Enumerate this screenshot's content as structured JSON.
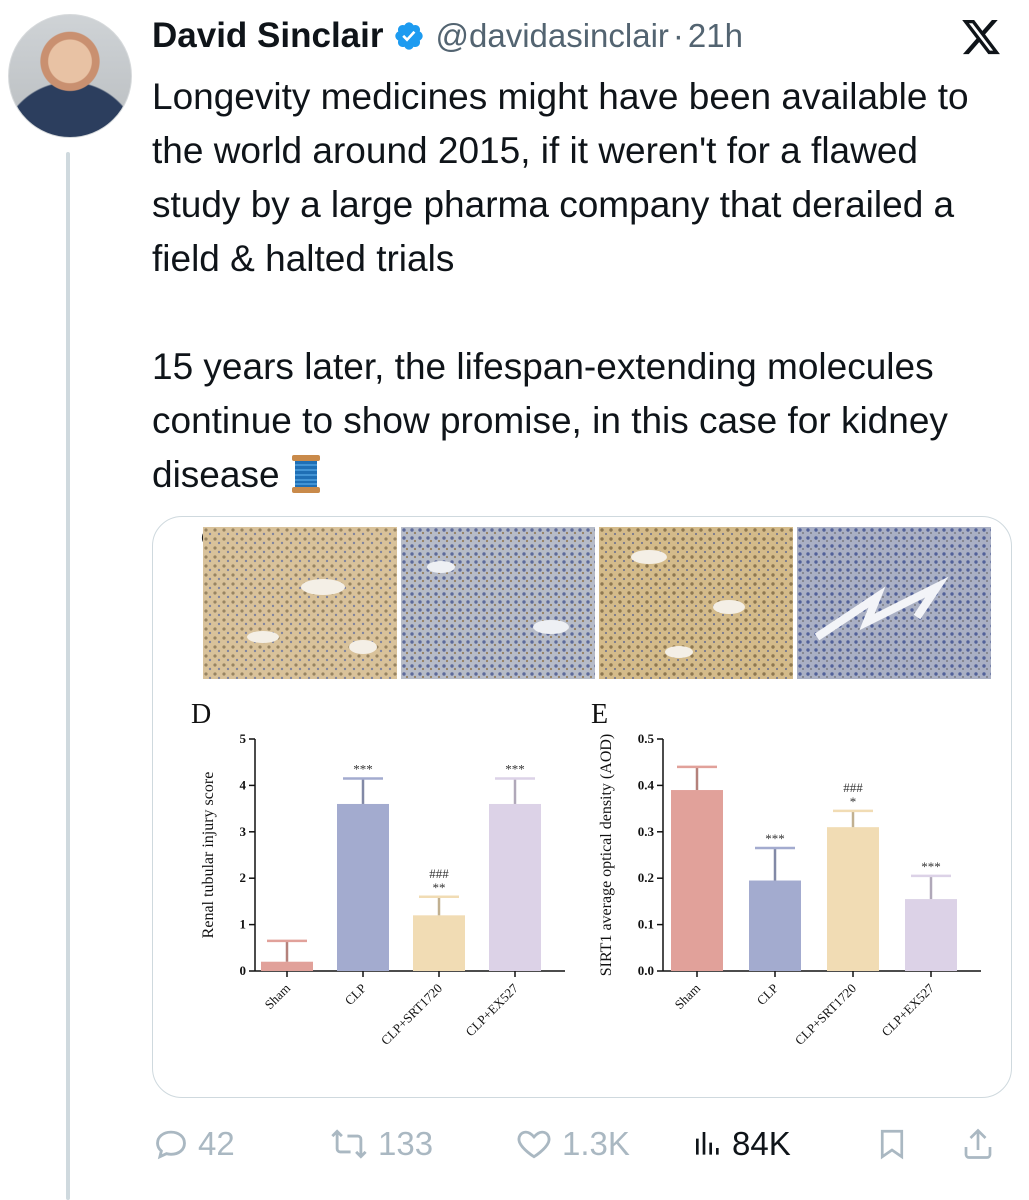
{
  "author": {
    "name": "David Sinclair",
    "handle": "@davidasinclair",
    "separator": "·",
    "time": "21h"
  },
  "tweet": {
    "paragraph1": "Longevity medicines might have been available to the world around 2015, if it weren't for a flawed study by a large pharma company that derailed a field & halted trials",
    "paragraph2": "15 years later, the lifespan-extending molecules continue to show promise, in this case for kidney disease"
  },
  "actions": {
    "replies": "42",
    "reposts": "133",
    "likes": "1.3K",
    "views": "84K"
  },
  "figure": {
    "panel_c_label": "C",
    "image_tints": [
      "#d9c29a",
      "#b7bcc8",
      "#d4bb8a",
      "#aab0c4"
    ]
  },
  "chart_data": [
    {
      "type": "bar",
      "panel": "D",
      "categories": [
        "Sham",
        "CLP",
        "CLP+SRT1720",
        "CLP+EX527"
      ],
      "values": [
        0.2,
        3.6,
        1.2,
        3.6
      ],
      "errors": [
        0.45,
        0.55,
        0.4,
        0.55
      ],
      "significance": [
        "",
        "***",
        "**",
        "***"
      ],
      "significance_extra": [
        "",
        "",
        "###",
        ""
      ],
      "colors": [
        "#e1a19a",
        "#a3abcf",
        "#f1dcb4",
        "#dcd2e7"
      ],
      "ylabel": "Renal tubular injury score",
      "ylim": [
        0,
        5
      ],
      "yticks": [
        "0",
        "1",
        "2",
        "3",
        "4",
        "5"
      ]
    },
    {
      "type": "bar",
      "panel": "E",
      "categories": [
        "Sham",
        "CLP",
        "CLP+SRT1720",
        "CLP+EX527"
      ],
      "values": [
        0.39,
        0.195,
        0.31,
        0.155
      ],
      "errors": [
        0.05,
        0.07,
        0.035,
        0.05
      ],
      "significance": [
        "",
        "***",
        "*",
        "***"
      ],
      "significance_extra": [
        "",
        "",
        "###",
        ""
      ],
      "colors": [
        "#e1a19a",
        "#a3abcf",
        "#f1dcb4",
        "#dcd2e7"
      ],
      "ylabel": "SIRT1 average optical density (AOD)",
      "ylim": [
        0,
        0.5
      ],
      "yticks": [
        "0.0",
        "0.1",
        "0.2",
        "0.3",
        "0.4",
        "0.5"
      ]
    }
  ]
}
